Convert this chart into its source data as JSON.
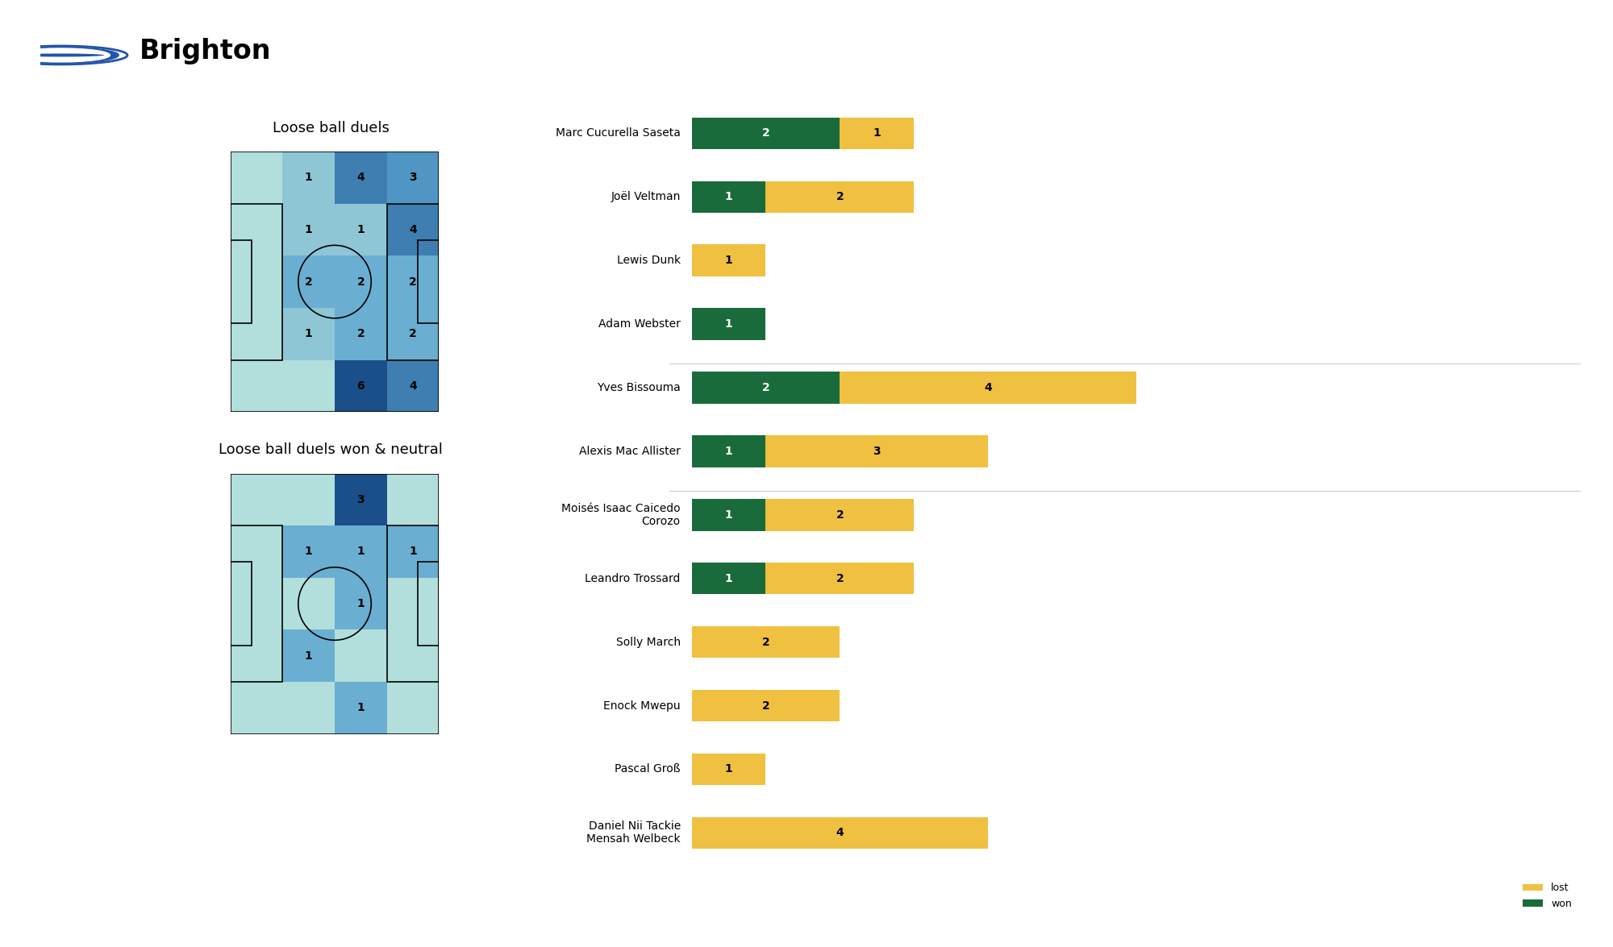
{
  "title": "Brighton",
  "subtitle1": "Loose ball duels",
  "subtitle2": "Loose ball duels won & neutral",
  "bg_color": "#ffffff",
  "heatmap1": {
    "values": [
      [
        0,
        1,
        4,
        3
      ],
      [
        0,
        1,
        1,
        4
      ],
      [
        0,
        2,
        2,
        2
      ],
      [
        0,
        1,
        2,
        2
      ],
      [
        0,
        0,
        6,
        4
      ]
    ]
  },
  "heatmap2": {
    "values": [
      [
        0,
        0,
        3,
        0
      ],
      [
        0,
        1,
        1,
        1
      ],
      [
        0,
        0,
        1,
        0
      ],
      [
        0,
        1,
        0,
        0
      ],
      [
        0,
        0,
        1,
        0
      ]
    ]
  },
  "bar_data": [
    {
      "name": "Marc Cucurella Saseta",
      "won": 2,
      "lost": 1
    },
    {
      "name": "Joël Veltman",
      "won": 1,
      "lost": 2
    },
    {
      "name": "Lewis Dunk",
      "won": 0,
      "lost": 1
    },
    {
      "name": "Adam Webster",
      "won": 1,
      "lost": 0
    },
    {
      "name": "Yves Bissouma",
      "won": 2,
      "lost": 4
    },
    {
      "name": "Alexis Mac Allister",
      "won": 1,
      "lost": 3
    },
    {
      "name": "Moisés Isaac Caicedo\nCorozo",
      "won": 1,
      "lost": 2
    },
    {
      "name": "Leandro Trossard",
      "won": 1,
      "lost": 2
    },
    {
      "name": "Solly March",
      "won": 0,
      "lost": 2
    },
    {
      "name": "Enock Mwepu",
      "won": 0,
      "lost": 2
    },
    {
      "name": "Pascal Groß",
      "won": 0,
      "lost": 1
    },
    {
      "name": "Daniel Nii Tackie\nMensah Welbeck",
      "won": 0,
      "lost": 4
    }
  ],
  "color_won": "#1a6b3c",
  "color_lost": "#f0c040",
  "color_won_label": "#ffffff",
  "color_lost_label": "#000000",
  "heatmap_color_0": "#ffffff",
  "heatmap_color_low": "#b2dfdb",
  "heatmap_color_mid": "#6db3d4",
  "heatmap_color_high": "#1a4f8a",
  "pitch_line_color": "#000000",
  "separator_after": [
    3,
    5
  ]
}
